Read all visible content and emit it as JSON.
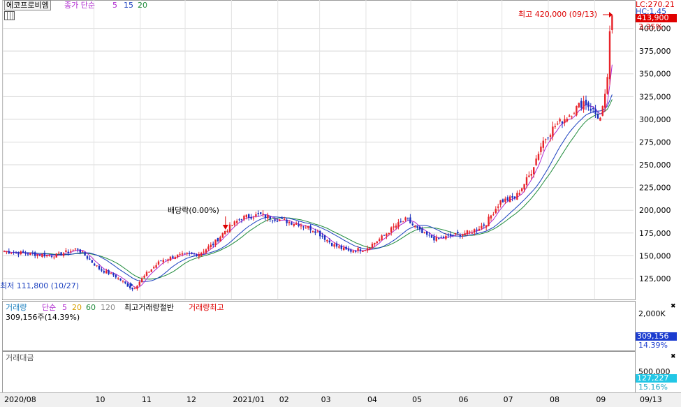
{
  "header": {
    "stock_name": "에코프로비엠",
    "ma_title": "종가 단순",
    "ma_periods": [
      "5",
      "15",
      "20"
    ],
    "lc_value": "LC:270.21",
    "hc_value": "HC:1.45"
  },
  "price_panel": {
    "last_price_badge": "413,900",
    "last_change_pct": "3.35%",
    "high_annotation": "최고 420,000 (09/13)",
    "low_annotation": "최저 111,800 (10/27)",
    "dividend_annotation": "배당락(0.00%)"
  },
  "volume_panel": {
    "title": "거래량",
    "ma_title": "단순",
    "ma_periods": [
      "5",
      "20",
      "60",
      "120"
    ],
    "half_label": "최고거래량절반",
    "max_label": "거래량최고",
    "current_value": "309,156주(14.39%)",
    "badge_value": "309,156",
    "badge_pct": "14.39%",
    "axis_label": "2,000K"
  },
  "amount_panel": {
    "title": "거래대금",
    "badge_value": "127,227",
    "badge_pct": "15.16%",
    "axis_label": "500,000"
  },
  "colors": {
    "up": "#e8232a",
    "down": "#1b2fbf",
    "ma5": "#b02bd0",
    "ma15": "#1a3fbf",
    "ma20": "#1e8a3a",
    "vol_max": "#e00000",
    "vol_half": "#000000",
    "amount_bar": "#5a5a9a"
  },
  "chart_data": {
    "type": "candlestick",
    "y_ticks": [
      125000,
      150000,
      175000,
      200000,
      225000,
      250000,
      275000,
      300000,
      325000,
      350000,
      375000,
      400000
    ],
    "y_tick_labels": [
      "125,000",
      "150,000",
      "175,000",
      "200,000",
      "225,000",
      "250,000",
      "275,000",
      "300,000",
      "325,000",
      "350,000",
      "375,000",
      "400,000"
    ],
    "ylim": [
      105000,
      425000
    ],
    "x_labels": [
      "2020/08",
      "10",
      "11",
      "12",
      "2021/01",
      "02",
      "03",
      "04",
      "05",
      "06",
      "07",
      "08",
      "09",
      "09/13"
    ],
    "price_path": [
      [
        "2020-08-01",
        155000
      ],
      [
        "2020-08-20",
        152000
      ],
      [
        "2020-09-05",
        150000
      ],
      [
        "2020-09-20",
        158000
      ],
      [
        "2020-10-05",
        135000
      ],
      [
        "2020-10-15",
        128000
      ],
      [
        "2020-10-27",
        113000
      ],
      [
        "2020-11-05",
        130000
      ],
      [
        "2020-11-15",
        145000
      ],
      [
        "2020-11-25",
        150000
      ],
      [
        "2020-12-10",
        152000
      ],
      [
        "2020-12-20",
        163000
      ],
      [
        "2020-12-28",
        178000
      ],
      [
        "2021-01-08",
        192000
      ],
      [
        "2021-01-20",
        195000
      ],
      [
        "2021-02-01",
        190000
      ],
      [
        "2021-02-15",
        185000
      ],
      [
        "2021-02-26",
        178000
      ],
      [
        "2021-03-10",
        162000
      ],
      [
        "2021-03-20",
        155000
      ],
      [
        "2021-04-01",
        158000
      ],
      [
        "2021-04-10",
        168000
      ],
      [
        "2021-04-20",
        182000
      ],
      [
        "2021-04-28",
        190000
      ],
      [
        "2021-05-08",
        175000
      ],
      [
        "2021-05-18",
        168000
      ],
      [
        "2021-05-28",
        172000
      ],
      [
        "2021-06-10",
        176000
      ],
      [
        "2021-06-20",
        185000
      ],
      [
        "2021-06-30",
        210000
      ],
      [
        "2021-07-10",
        214000
      ],
      [
        "2021-07-20",
        240000
      ],
      [
        "2021-07-28",
        275000
      ],
      [
        "2021-08-05",
        292000
      ],
      [
        "2021-08-15",
        305000
      ],
      [
        "2021-08-25",
        320000
      ],
      [
        "2021-09-05",
        300000
      ],
      [
        "2021-09-09",
        332000
      ],
      [
        "2021-09-11",
        390000
      ],
      [
        "2021-09-13",
        413900
      ]
    ],
    "volume_path": [
      [
        "2020-08-01",
        0.1
      ],
      [
        "2020-10-27",
        0.14
      ],
      [
        "2020-12-28",
        0.16
      ],
      [
        "2021-01-20",
        0.14
      ],
      [
        "2021-02-26",
        0.08
      ],
      [
        "2021-04-20",
        0.1
      ],
      [
        "2021-06-10",
        0.07
      ],
      [
        "2021-07-20",
        0.18
      ],
      [
        "2021-08-15",
        0.22
      ],
      [
        "2021-09-05",
        0.15
      ],
      [
        "2021-09-11",
        0.6
      ],
      [
        "2021-09-13",
        0.1439
      ]
    ],
    "volume_max_path": [
      [
        "2020-08-01",
        0.12
      ],
      [
        "2020-09-25",
        0.38
      ],
      [
        "2020-11-01",
        0.22
      ],
      [
        "2020-12-01",
        0.3
      ],
      [
        "2021-01-01",
        0.4
      ],
      [
        "2021-02-01",
        0.2
      ],
      [
        "2021-04-10",
        0.18
      ],
      [
        "2021-04-15",
        0.52
      ],
      [
        "2021-05-15",
        0.2
      ],
      [
        "2021-06-10",
        0.18
      ],
      [
        "2021-07-01",
        0.32
      ],
      [
        "2021-07-20",
        0.64
      ],
      [
        "2021-08-10",
        0.9
      ],
      [
        "2021-09-10",
        1.0
      ],
      [
        "2021-09-13",
        1.0
      ]
    ],
    "amount_max": 700000,
    "amount_path": [
      [
        "2020-08-01",
        50000
      ],
      [
        "2020-10-27",
        60000
      ],
      [
        "2020-12-28",
        70000
      ],
      [
        "2021-02-26",
        40000
      ],
      [
        "2021-04-20",
        60000
      ],
      [
        "2021-06-10",
        40000
      ],
      [
        "2021-07-28",
        150000
      ],
      [
        "2021-08-20",
        200000
      ],
      [
        "2021-09-05",
        120000
      ],
      [
        "2021-09-11",
        650000
      ],
      [
        "2021-09-13",
        127227
      ]
    ]
  }
}
